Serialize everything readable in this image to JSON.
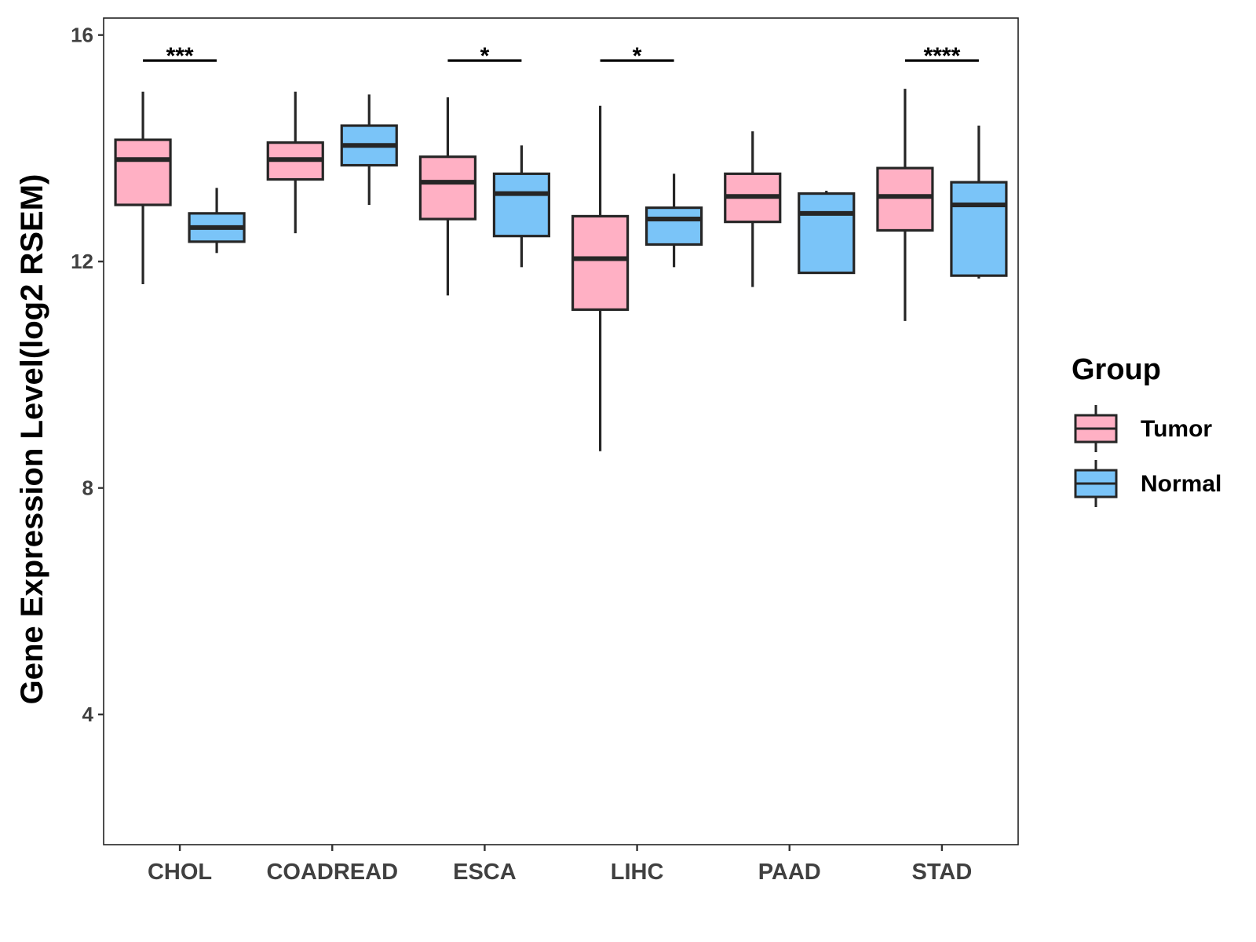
{
  "chart_data": {
    "type": "boxplot",
    "title": "",
    "xlabel": "",
    "ylabel": "Gene Expression Level(log2 RSEM)",
    "ylim": [
      1.7,
      16.3
    ],
    "yticks": [
      4,
      8,
      12,
      16
    ],
    "categories": [
      "CHOL",
      "COADREAD",
      "ESCA",
      "LIHC",
      "PAAD",
      "STAD"
    ],
    "legend": {
      "title": "Group",
      "position": "right",
      "entries": [
        {
          "name": "Tumor",
          "color": "#FFB0C4"
        },
        {
          "name": "Normal",
          "color": "#7AC4F8"
        }
      ]
    },
    "series": [
      {
        "name": "Tumor",
        "color": "#FFB0C4",
        "boxes": [
          {
            "category": "CHOL",
            "whisker_low": 11.6,
            "q1": 13.0,
            "median": 13.8,
            "q3": 14.15,
            "whisker_high": 15.0
          },
          {
            "category": "COADREAD",
            "whisker_low": 12.5,
            "q1": 13.45,
            "median": 13.8,
            "q3": 14.1,
            "whisker_high": 15.0
          },
          {
            "category": "ESCA",
            "whisker_low": 11.4,
            "q1": 12.75,
            "median": 13.4,
            "q3": 13.85,
            "whisker_high": 14.9
          },
          {
            "category": "LIHC",
            "whisker_low": 8.65,
            "q1": 11.15,
            "median": 12.05,
            "q3": 12.8,
            "whisker_high": 14.75
          },
          {
            "category": "PAAD",
            "whisker_low": 11.55,
            "q1": 12.7,
            "median": 13.15,
            "q3": 13.55,
            "whisker_high": 14.3
          },
          {
            "category": "STAD",
            "whisker_low": 10.95,
            "q1": 12.55,
            "median": 13.15,
            "q3": 13.65,
            "whisker_high": 15.05
          }
        ]
      },
      {
        "name": "Normal",
        "color": "#7AC4F8",
        "boxes": [
          {
            "category": "CHOL",
            "whisker_low": 12.15,
            "q1": 12.35,
            "median": 12.6,
            "q3": 12.85,
            "whisker_high": 13.3
          },
          {
            "category": "COADREAD",
            "whisker_low": 13.0,
            "q1": 13.7,
            "median": 14.05,
            "q3": 14.4,
            "whisker_high": 14.95
          },
          {
            "category": "ESCA",
            "whisker_low": 11.9,
            "q1": 12.45,
            "median": 13.2,
            "q3": 13.55,
            "whisker_high": 14.05
          },
          {
            "category": "LIHC",
            "whisker_low": 11.9,
            "q1": 12.3,
            "median": 12.75,
            "q3": 12.95,
            "whisker_high": 13.55
          },
          {
            "category": "PAAD",
            "whisker_low": 11.8,
            "q1": 11.8,
            "median": 12.85,
            "q3": 13.2,
            "whisker_high": 13.25
          },
          {
            "category": "STAD",
            "whisker_low": 11.7,
            "q1": 11.75,
            "median": 13.0,
            "q3": 13.4,
            "whisker_high": 14.4
          }
        ]
      }
    ],
    "annotations": [
      {
        "category": "CHOL",
        "label": "***",
        "y": 15.55
      },
      {
        "category": "ESCA",
        "label": "*",
        "y": 15.55
      },
      {
        "category": "LIHC",
        "label": "*",
        "y": 15.55
      },
      {
        "category": "STAD",
        "label": "****",
        "y": 15.55
      }
    ]
  }
}
